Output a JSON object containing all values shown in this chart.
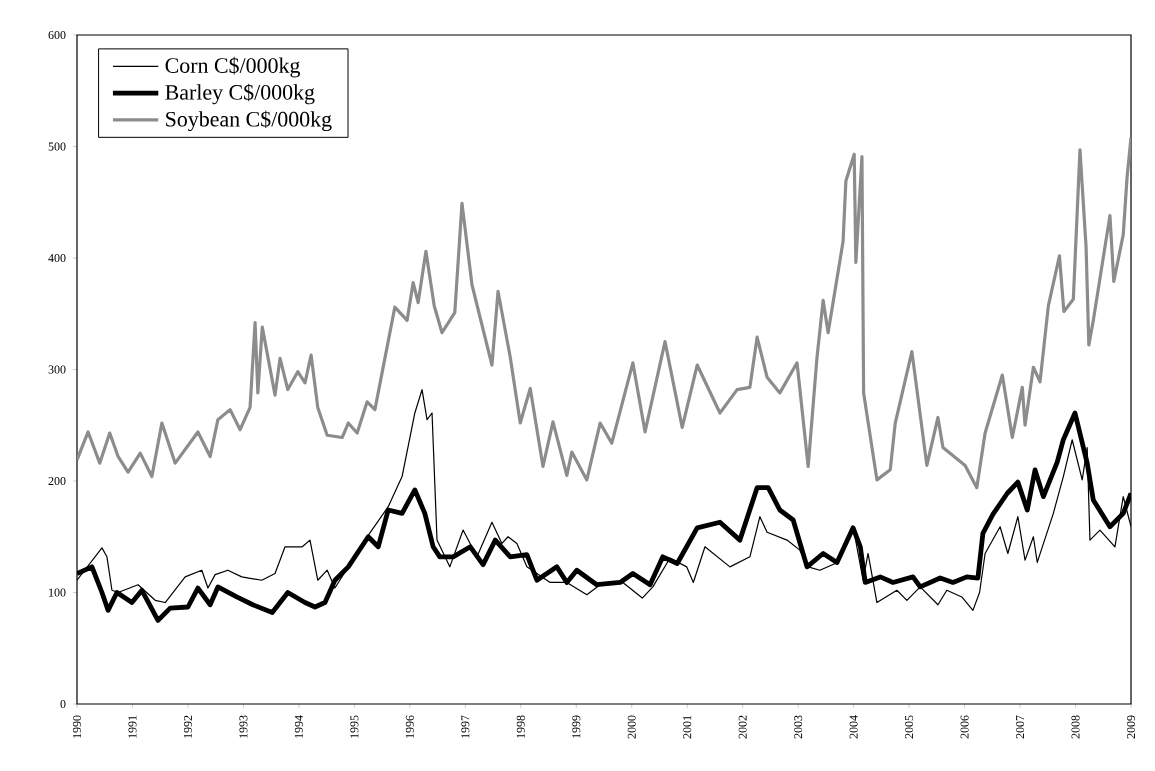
{
  "chart_data": {
    "type": "line",
    "xlim": [
      1990,
      2009
    ],
    "ylim": [
      0,
      600
    ],
    "xticks": [
      1990,
      1991,
      1992,
      1993,
      1994,
      1995,
      1996,
      1997,
      1998,
      1999,
      2000,
      2001,
      2002,
      2003,
      2004,
      2005,
      2006,
      2007,
      2008,
      2009
    ],
    "yticks": [
      0,
      100,
      200,
      300,
      400,
      500,
      600
    ],
    "grid": false,
    "legend": "top left",
    "marker": "none",
    "line_style": "solid",
    "series": [
      {
        "name": "Corn C$/000kg",
        "color": "#000000",
        "x": [
          1990.0,
          1990.45,
          1990.54,
          1990.63,
          1990.74,
          1991.1,
          1991.41,
          1991.59,
          1991.95,
          1992.25,
          1992.36,
          1992.49,
          1992.72,
          1992.97,
          1993.33,
          1993.57,
          1993.75,
          1994.06,
          1994.2,
          1994.34,
          1994.51,
          1994.65,
          1995.19,
          1995.61,
          1995.86,
          1996.09,
          1996.22,
          1996.31,
          1996.4,
          1996.49,
          1996.72,
          1996.96,
          1997.21,
          1997.48,
          1997.66,
          1997.77,
          1997.93,
          1998.11,
          1998.53,
          1998.83,
          1999.19,
          1999.43,
          1999.84,
          2000.19,
          2000.38,
          2000.69,
          2000.99,
          2001.11,
          2001.32,
          2001.77,
          2002.13,
          2002.31,
          2002.44,
          2002.8,
          2003.03,
          2003.18,
          2003.39,
          2003.67,
          2003.99,
          2004.17,
          2004.26,
          2004.42,
          2004.78,
          2004.96,
          2005.2,
          2005.52,
          2005.68,
          2005.95,
          2006.15,
          2006.27,
          2006.37,
          2006.64,
          2006.78,
          2006.96,
          2007.09,
          2007.24,
          2007.31,
          2007.6,
          2007.78,
          2007.94,
          2008.12,
          2008.21,
          2008.26,
          2008.44,
          2008.71,
          2008.86,
          2009.0
        ],
        "values": [
          111,
          140,
          132,
          102,
          100,
          107,
          93,
          91,
          114,
          120,
          104,
          116,
          120,
          114,
          111,
          117,
          141,
          141,
          147,
          111,
          120,
          104,
          147,
          177,
          204,
          261,
          282,
          255,
          261,
          147,
          123,
          156,
          132,
          163,
          144,
          150,
          144,
          123,
          109,
          109,
          98,
          107,
          109,
          95,
          105,
          131,
          123,
          109,
          141,
          123,
          132,
          168,
          154,
          147,
          138,
          123,
          120,
          126,
          159,
          111,
          135,
          91,
          102,
          93,
          105,
          89,
          102,
          96,
          84,
          100,
          135,
          159,
          135,
          168,
          129,
          150,
          127,
          171,
          204,
          237,
          201,
          230,
          147,
          156,
          141,
          186,
          159
        ]
      },
      {
        "name": "Barley C$/000kg",
        "color": "#000000",
        "x": [
          1990.0,
          1990.27,
          1990.45,
          1990.56,
          1990.72,
          1990.99,
          1991.17,
          1991.46,
          1991.68,
          1992.0,
          1992.18,
          1992.4,
          1992.54,
          1992.88,
          1993.17,
          1993.52,
          1993.8,
          1994.11,
          1994.29,
          1994.47,
          1994.65,
          1994.89,
          1995.25,
          1995.43,
          1995.61,
          1995.86,
          1996.09,
          1996.27,
          1996.42,
          1996.54,
          1996.78,
          1997.09,
          1997.32,
          1997.54,
          1997.81,
          1998.11,
          1998.29,
          1998.65,
          1998.83,
          1999.01,
          1999.37,
          1999.79,
          2000.02,
          2000.33,
          2000.56,
          2000.82,
          2001.18,
          2001.59,
          2001.95,
          2002.26,
          2002.46,
          2002.67,
          2002.91,
          2003.16,
          2003.45,
          2003.7,
          2003.99,
          2004.12,
          2004.21,
          2004.48,
          2004.71,
          2005.07,
          2005.2,
          2005.56,
          2005.79,
          2006.04,
          2006.24,
          2006.33,
          2006.51,
          2006.77,
          2006.96,
          2007.13,
          2007.27,
          2007.42,
          2007.67,
          2007.78,
          2007.99,
          2008.21,
          2008.32,
          2008.62,
          2008.86,
          2009.0
        ],
        "values": [
          117,
          123,
          100,
          84,
          100,
          91,
          102,
          75,
          86,
          87,
          104,
          89,
          105,
          96,
          89,
          82,
          100,
          91,
          87,
          91,
          111,
          123,
          150,
          141,
          174,
          171,
          192,
          171,
          141,
          132,
          132,
          141,
          125,
          147,
          132,
          134,
          111,
          123,
          109,
          120,
          107,
          109,
          117,
          107,
          132,
          126,
          158,
          163,
          147,
          194,
          194,
          174,
          165,
          123,
          135,
          127,
          158,
          141,
          109,
          114,
          109,
          114,
          105,
          113,
          109,
          114,
          113,
          153,
          170,
          189,
          199,
          174,
          210,
          186,
          217,
          237,
          261,
          216,
          183,
          159,
          171,
          189
        ]
      },
      {
        "name": "Soybean C$/000kg",
        "color": "#8c8c8c",
        "x": [
          1990.0,
          1990.2,
          1990.41,
          1990.59,
          1990.74,
          1990.92,
          1991.14,
          1991.35,
          1991.53,
          1991.77,
          1992.18,
          1992.4,
          1992.54,
          1992.76,
          1992.94,
          1993.12,
          1993.21,
          1993.26,
          1993.34,
          1993.57,
          1993.66,
          1993.8,
          1993.98,
          1994.11,
          1994.22,
          1994.34,
          1994.51,
          1994.78,
          1994.89,
          1995.05,
          1995.23,
          1995.37,
          1995.55,
          1995.73,
          1995.95,
          1996.06,
          1996.15,
          1996.29,
          1996.44,
          1996.58,
          1996.81,
          1996.94,
          1997.12,
          1997.48,
          1997.59,
          1997.81,
          1997.99,
          1998.17,
          1998.4,
          1998.58,
          1998.83,
          1998.92,
          1999.19,
          1999.43,
          1999.64,
          2000.02,
          2000.24,
          2000.6,
          2000.91,
          2001.18,
          2001.59,
          2001.9,
          2002.13,
          2002.26,
          2002.44,
          2002.67,
          2002.98,
          2003.18,
          2003.34,
          2003.45,
          2003.54,
          2003.81,
          2003.86,
          2004.01,
          2004.04,
          2004.15,
          2004.18,
          2004.42,
          2004.66,
          2004.75,
          2005.05,
          2005.32,
          2005.52,
          2005.61,
          2006.01,
          2006.22,
          2006.37,
          2006.68,
          2006.86,
          2007.04,
          2007.09,
          2007.24,
          2007.36,
          2007.51,
          2007.71,
          2007.79,
          2007.96,
          2008.08,
          2008.19,
          2008.24,
          2008.32,
          2008.62,
          2008.69,
          2008.86,
          2008.93,
          2009.0
        ],
        "values": [
          219,
          244,
          216,
          243,
          222,
          208,
          225,
          204,
          252,
          216,
          244,
          222,
          255,
          264,
          246,
          266,
          342,
          279,
          338,
          277,
          310,
          282,
          298,
          288,
          313,
          266,
          241,
          239,
          252,
          243,
          271,
          264,
          310,
          356,
          344,
          378,
          360,
          406,
          357,
          333,
          351,
          449,
          376,
          304,
          370,
          311,
          252,
          283,
          213,
          253,
          205,
          226,
          201,
          252,
          234,
          306,
          244,
          325,
          248,
          304,
          261,
          282,
          284,
          329,
          293,
          279,
          306,
          213,
          311,
          362,
          333,
          415,
          469,
          493,
          396,
          491,
          279,
          201,
          210,
          252,
          316,
          214,
          257,
          230,
          214,
          194,
          243,
          295,
          239,
          284,
          250,
          302,
          289,
          357,
          402,
          352,
          363,
          497,
          410,
          322,
          344,
          438,
          379,
          421,
          473,
          508
        ]
      }
    ]
  }
}
